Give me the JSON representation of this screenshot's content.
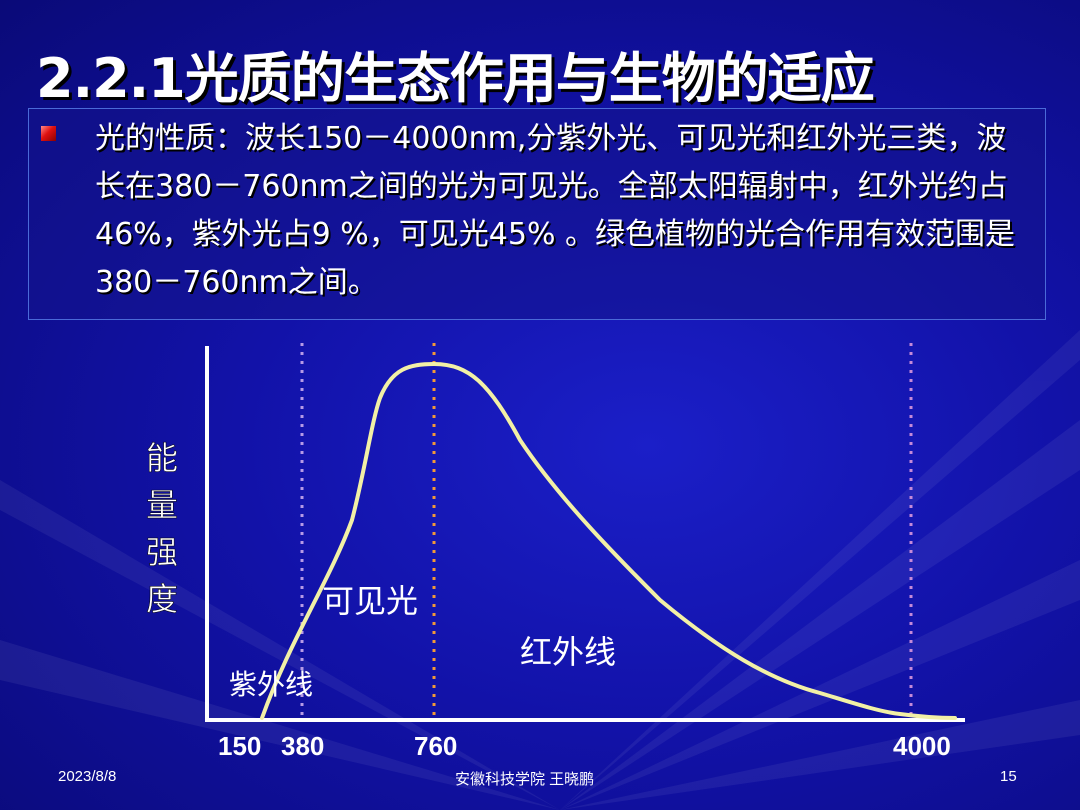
{
  "slide": {
    "title": "2.2.1光质的生态作用与生物的适应",
    "paragraph": "光的性质：波长150－4000nm,分紫外光、可见光和红外光三类，波长在380－760nm之间的光为可见光。全部太阳辐射中，红外光约占46%，紫外光占9 %，可见光45% 。绿色植物的光合作用有效范围是380－760nm之间。"
  },
  "footer": {
    "date": "2023/8/8",
    "institution": "安徽科技学院 王晓鹏",
    "page_number": "15"
  },
  "diagram": {
    "y_axis_label": "能量强度",
    "region_labels": {
      "ultraviolet": "紫外线",
      "visible": "可见光",
      "infrared": "红外线"
    },
    "wavelength_ticks": [
      "150",
      "380",
      "760",
      "4000"
    ],
    "colors": {
      "curve": "#f2f0a6",
      "axis": "#ffffff",
      "line_380": "#b79be6",
      "line_760": "#f39a36",
      "line_4000": "#c58ad8"
    }
  }
}
